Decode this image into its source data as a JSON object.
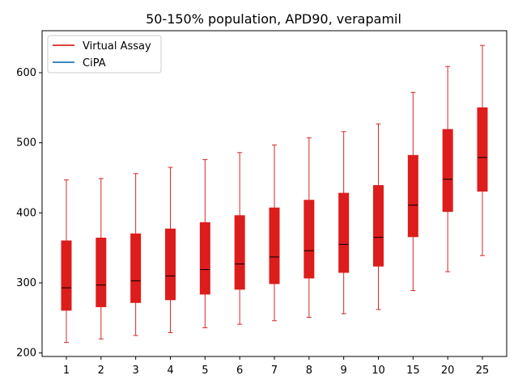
{
  "chart_data": {
    "type": "box",
    "title": "50-150% population, APD90, verapamil",
    "xlabel": "",
    "ylabel": "",
    "categories": [
      "1",
      "2",
      "3",
      "4",
      "5",
      "6",
      "7",
      "8",
      "9",
      "10",
      "15",
      "20",
      "25"
    ],
    "ylim": [
      195,
      660
    ],
    "yticks": [
      200,
      300,
      400,
      500,
      600
    ],
    "grid": false,
    "legend_position": "top-left",
    "series": [
      {
        "name": "Virtual Assay",
        "color": "#d62728",
        "box_fill": "#dd1c1c",
        "median_color": "#000000",
        "boxes": [
          {
            "whislo": 215,
            "q1": 261,
            "med": 293,
            "q3": 360,
            "whishi": 447
          },
          {
            "whislo": 220,
            "q1": 266,
            "med": 297,
            "q3": 364,
            "whishi": 449
          },
          {
            "whislo": 225,
            "q1": 272,
            "med": 303,
            "q3": 370,
            "whishi": 456
          },
          {
            "whislo": 229,
            "q1": 276,
            "med": 310,
            "q3": 377,
            "whishi": 465
          },
          {
            "whislo": 236,
            "q1": 284,
            "med": 319,
            "q3": 386,
            "whishi": 476
          },
          {
            "whislo": 241,
            "q1": 291,
            "med": 327,
            "q3": 396,
            "whishi": 486
          },
          {
            "whislo": 246,
            "q1": 299,
            "med": 337,
            "q3": 407,
            "whishi": 497
          },
          {
            "whislo": 251,
            "q1": 307,
            "med": 346,
            "q3": 418,
            "whishi": 507
          },
          {
            "whislo": 256,
            "q1": 315,
            "med": 355,
            "q3": 428,
            "whishi": 516
          },
          {
            "whislo": 262,
            "q1": 324,
            "med": 365,
            "q3": 439,
            "whishi": 527
          },
          {
            "whislo": 289,
            "q1": 366,
            "med": 411,
            "q3": 482,
            "whishi": 572
          },
          {
            "whislo": 316,
            "q1": 402,
            "med": 448,
            "q3": 519,
            "whishi": 609
          },
          {
            "whislo": 339,
            "q1": 431,
            "med": 479,
            "q3": 550,
            "whishi": 639
          }
        ]
      },
      {
        "name": "CiPA",
        "color": "#1f77b4",
        "boxes": []
      }
    ]
  }
}
